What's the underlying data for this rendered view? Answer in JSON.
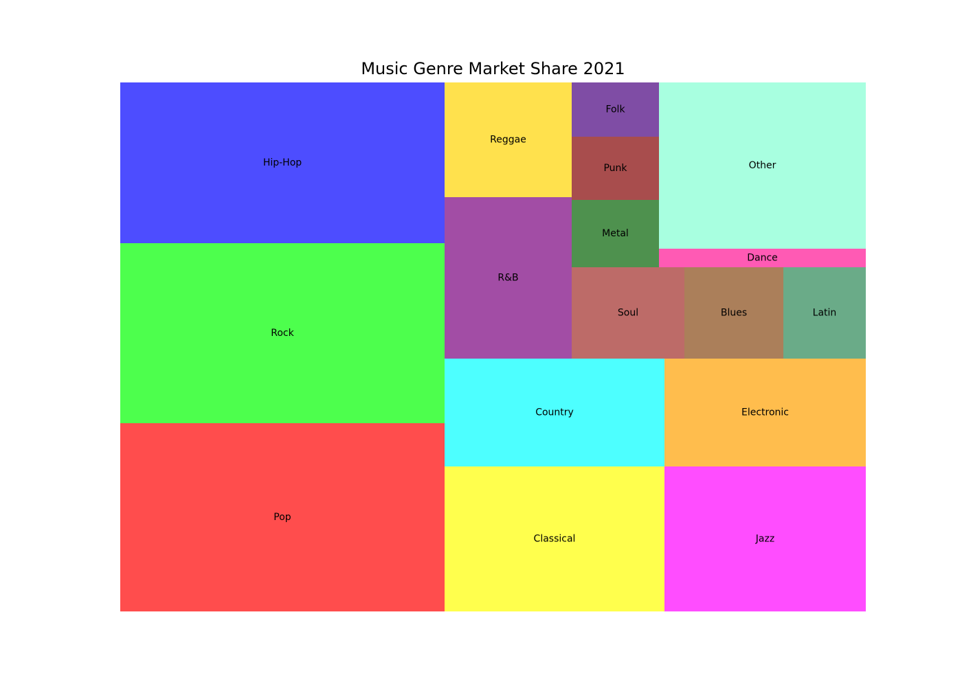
{
  "chart_data": {
    "type": "treemap",
    "title": "Music Genre Market Share 2021",
    "items": [
      {
        "label": "Pop",
        "value": 18.5,
        "color": "#ff4d4d"
      },
      {
        "label": "Rock",
        "value": 17.6,
        "color": "#4dff4d"
      },
      {
        "label": "Hip-Hop",
        "value": 15.7,
        "color": "#4d4dff"
      },
      {
        "label": "Classical",
        "value": 9.7,
        "color": "#ffff4d"
      },
      {
        "label": "Jazz",
        "value": 8.8,
        "color": "#ff4dff"
      },
      {
        "label": "Country",
        "value": 7.2,
        "color": "#4dffff"
      },
      {
        "label": "Electronic",
        "value": 6.5,
        "color": "#ffbd4d"
      },
      {
        "label": "R&B",
        "value": 6.1,
        "color": "#a24da5"
      },
      {
        "label": "Reggae",
        "value": 4.4,
        "color": "#ffe14d"
      },
      {
        "label": "Soul",
        "value": 3.1,
        "color": "#bd6b68"
      },
      {
        "label": "Blues",
        "value": 2.7,
        "color": "#ab7f5a"
      },
      {
        "label": "Latin",
        "value": 2.3,
        "color": "#6aab88"
      },
      {
        "label": "Metal",
        "value": 1.8,
        "color": "#4e914e"
      },
      {
        "label": "Punk",
        "value": 1.7,
        "color": "#a84d4d"
      },
      {
        "label": "Folk",
        "value": 1.4,
        "color": "#7f4da5"
      },
      {
        "label": "Other",
        "value": 10.3,
        "color": "#a8ffe0"
      },
      {
        "label": "Dance",
        "value": 1.1,
        "color": "#ff5ab4"
      }
    ]
  }
}
